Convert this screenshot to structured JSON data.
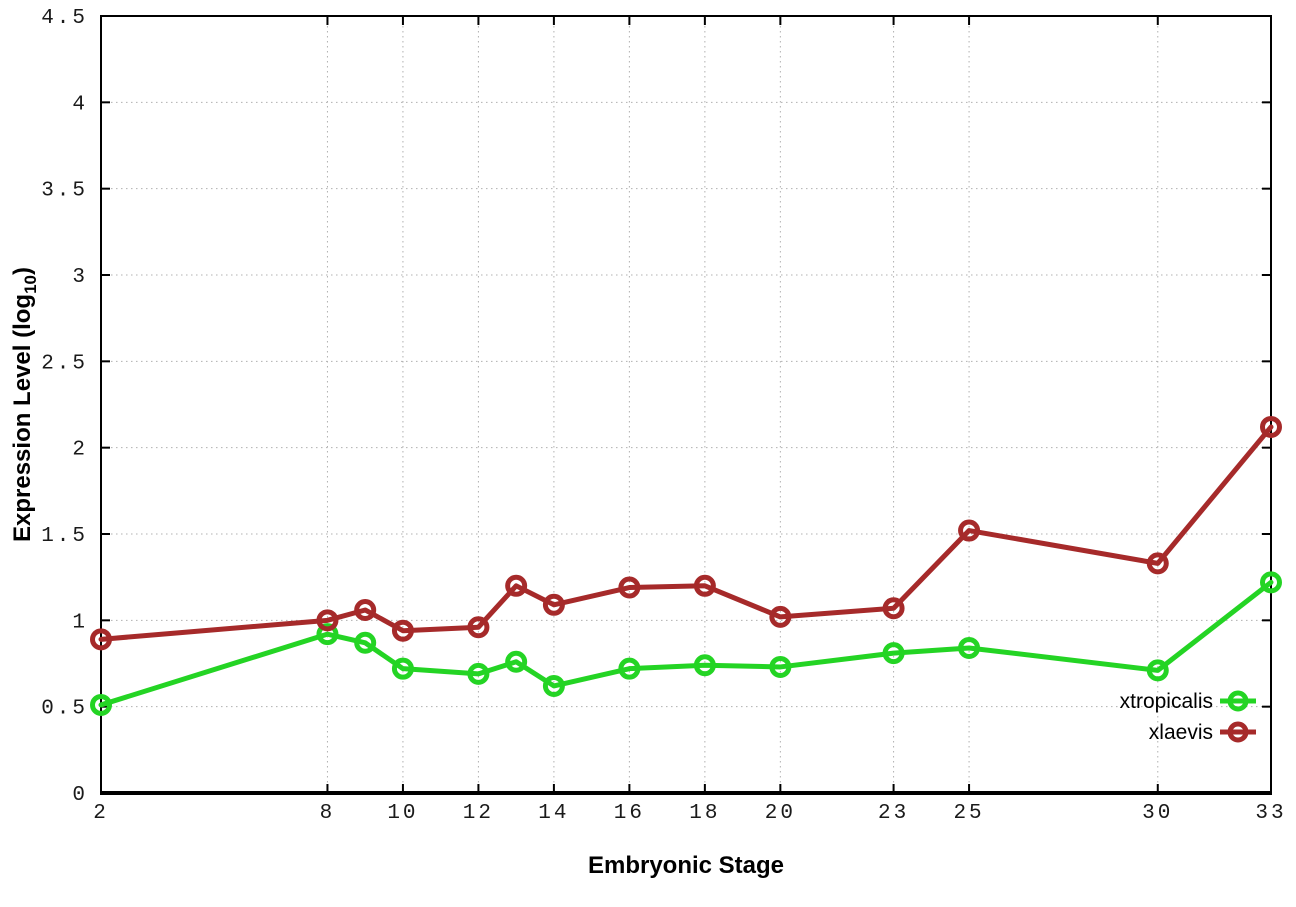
{
  "chart_data": {
    "type": "line",
    "title": "",
    "xlabel": "Embryonic Stage",
    "ylabel": "Expression Level (log10)",
    "ylabel_prefix": "Expression Level (log",
    "ylabel_sub": "10",
    "ylabel_suffix": ")",
    "xlim": [
      2,
      33
    ],
    "ylim": [
      0,
      4.5
    ],
    "grid": true,
    "grid_style": "dotted",
    "legend_position": "bottom-right",
    "x": [
      2,
      8,
      9,
      10,
      12,
      13,
      14,
      16,
      18,
      20,
      23,
      25,
      30,
      33
    ],
    "xticks": [
      2,
      8,
      10,
      12,
      14,
      16,
      18,
      20,
      23,
      25,
      30,
      33
    ],
    "xtick_labels": [
      "2",
      "8",
      "10",
      "12",
      "14",
      "16",
      "18",
      "20",
      "23",
      "25",
      "30",
      "33"
    ],
    "yticks": [
      0,
      0.5,
      1,
      1.5,
      2,
      2.5,
      3,
      3.5,
      4,
      4.5
    ],
    "ytick_labels": [
      "0",
      "0.5",
      "1",
      "1.5",
      "2",
      "2.5",
      "3",
      "3.5",
      "4",
      "4.5"
    ],
    "series": [
      {
        "name": "xtropicalis",
        "color": "#24d424",
        "marker": "open-circle",
        "values": [
          0.51,
          0.92,
          0.87,
          0.72,
          0.69,
          0.76,
          0.62,
          0.72,
          0.74,
          0.73,
          0.81,
          0.84,
          0.71,
          1.22
        ]
      },
      {
        "name": "xlaevis",
        "color": "#a62a2a",
        "marker": "open-circle",
        "values": [
          0.89,
          1.0,
          1.06,
          0.94,
          0.96,
          1.2,
          1.09,
          1.19,
          1.2,
          1.02,
          1.07,
          1.52,
          1.33,
          2.12
        ]
      }
    ]
  },
  "colors": {
    "background": "#ffffff",
    "plot_border": "#000000",
    "grid": "#b0b0b0",
    "tick_label": "#1a1a1a",
    "axis_label": "#000000"
  }
}
